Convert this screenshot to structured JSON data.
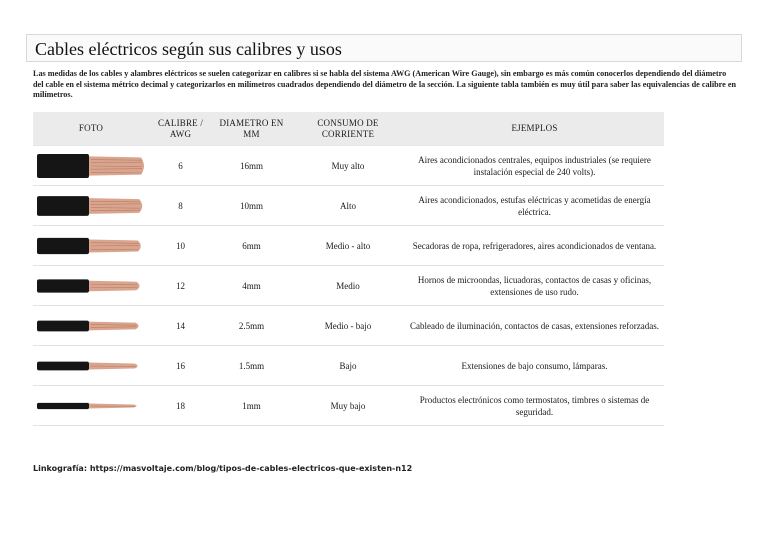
{
  "title": "Cables eléctricos según sus calibres y usos",
  "intro": "Las medidas de los cables y alambres eléctricos se suelen categorizar en calibres si se habla del sistema AWG (American Wire Gauge), sin embargo es más común conocerlos dependiendo del diámetro del cable en el sistema métrico decimal y categorizarlos en milímetros cuadrados dependiendo del diámetro de la sección. La siguiente tabla también es muy útil para saber las equivalencias de calibre en milímetros.",
  "table": {
    "headers": [
      "FOTO",
      "CALIBRE / AWG",
      "DIAMETRO EN MM",
      "CONSUMO DE CORRIENTE",
      "EJEMPLOS"
    ],
    "rows": [
      {
        "calibre": "6",
        "diametro": "16mm",
        "consumo": "Muy alto",
        "ejemplos": "Aires acondicionados centrales, equipos industriales (se requiere instalación especial de 240 volts).",
        "thickness": 1.0
      },
      {
        "calibre": "8",
        "diametro": "10mm",
        "consumo": "Alto",
        "ejemplos": "Aires acondicionados, estufas eléctricas y acometidas de energía eléctrica.",
        "thickness": 0.82
      },
      {
        "calibre": "10",
        "diametro": "6mm",
        "consumo": "Medio - alto",
        "ejemplos": "Secadoras de ropa, refrigeradores, aires acondicionados de ventana.",
        "thickness": 0.68
      },
      {
        "calibre": "12",
        "diametro": "4mm",
        "consumo": "Medio",
        "ejemplos": "Hornos de microondas, licuadoras, contactos de casas y oficinas, extensiones de uso rudo.",
        "thickness": 0.55
      },
      {
        "calibre": "14",
        "diametro": "2.5mm",
        "consumo": "Medio - bajo",
        "ejemplos": "Cableado de iluminación, contactos de casas, extensiones reforzadas.",
        "thickness": 0.45
      },
      {
        "calibre": "16",
        "diametro": "1.5mm",
        "consumo": "Bajo",
        "ejemplos": "Extensiones de bajo consumo, lámparas.",
        "thickness": 0.36
      },
      {
        "calibre": "18",
        "diametro": "1mm",
        "consumo": "Muy bajo",
        "ejemplos": "Productos electrónicos como termostatos, timbres o sistemas de seguridad.",
        "thickness": 0.26
      }
    ]
  },
  "colors": {
    "insulation": "#151515",
    "copper": "#d9a58f",
    "copper_dark": "#b97c66"
  },
  "footer": "Linkografía: https://masvoltaje.com/blog/tipos-de-cables-electricos-que-existen-n12"
}
